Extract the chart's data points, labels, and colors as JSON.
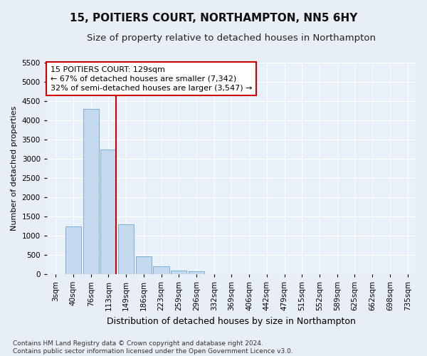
{
  "title": "15, POITIERS COURT, NORTHAMPTON, NN5 6HY",
  "subtitle": "Size of property relative to detached houses in Northampton",
  "xlabel": "Distribution of detached houses by size in Northampton",
  "ylabel": "Number of detached properties",
  "categories": [
    "3sqm",
    "40sqm",
    "76sqm",
    "113sqm",
    "149sqm",
    "186sqm",
    "223sqm",
    "259sqm",
    "296sqm",
    "332sqm",
    "369sqm",
    "406sqm",
    "442sqm",
    "479sqm",
    "515sqm",
    "552sqm",
    "589sqm",
    "625sqm",
    "662sqm",
    "698sqm",
    "735sqm"
  ],
  "values": [
    0,
    1250,
    4300,
    3250,
    1300,
    470,
    200,
    100,
    70,
    0,
    0,
    0,
    0,
    0,
    0,
    0,
    0,
    0,
    0,
    0,
    0
  ],
  "bar_color": "#c5d9ee",
  "bar_edge_color": "#7aafd4",
  "vline_color": "#cc0000",
  "vline_x_index": 3,
  "annotation_text": "15 POITIERS COURT: 129sqm\n← 67% of detached houses are smaller (7,342)\n32% of semi-detached houses are larger (3,547) →",
  "annotation_box_facecolor": "#ffffff",
  "annotation_box_edgecolor": "#cc0000",
  "ylim": [
    0,
    5500
  ],
  "yticks": [
    0,
    500,
    1000,
    1500,
    2000,
    2500,
    3000,
    3500,
    4000,
    4500,
    5000,
    5500
  ],
  "footer": "Contains HM Land Registry data © Crown copyright and database right 2024.\nContains public sector information licensed under the Open Government Licence v3.0.",
  "background_color": "#e8eef5",
  "plot_background_color": "#e8f0f8",
  "title_fontsize": 11,
  "subtitle_fontsize": 9.5,
  "xlabel_fontsize": 9,
  "ylabel_fontsize": 8,
  "tick_fontsize": 7.5,
  "annotation_fontsize": 8,
  "footer_fontsize": 6.5
}
